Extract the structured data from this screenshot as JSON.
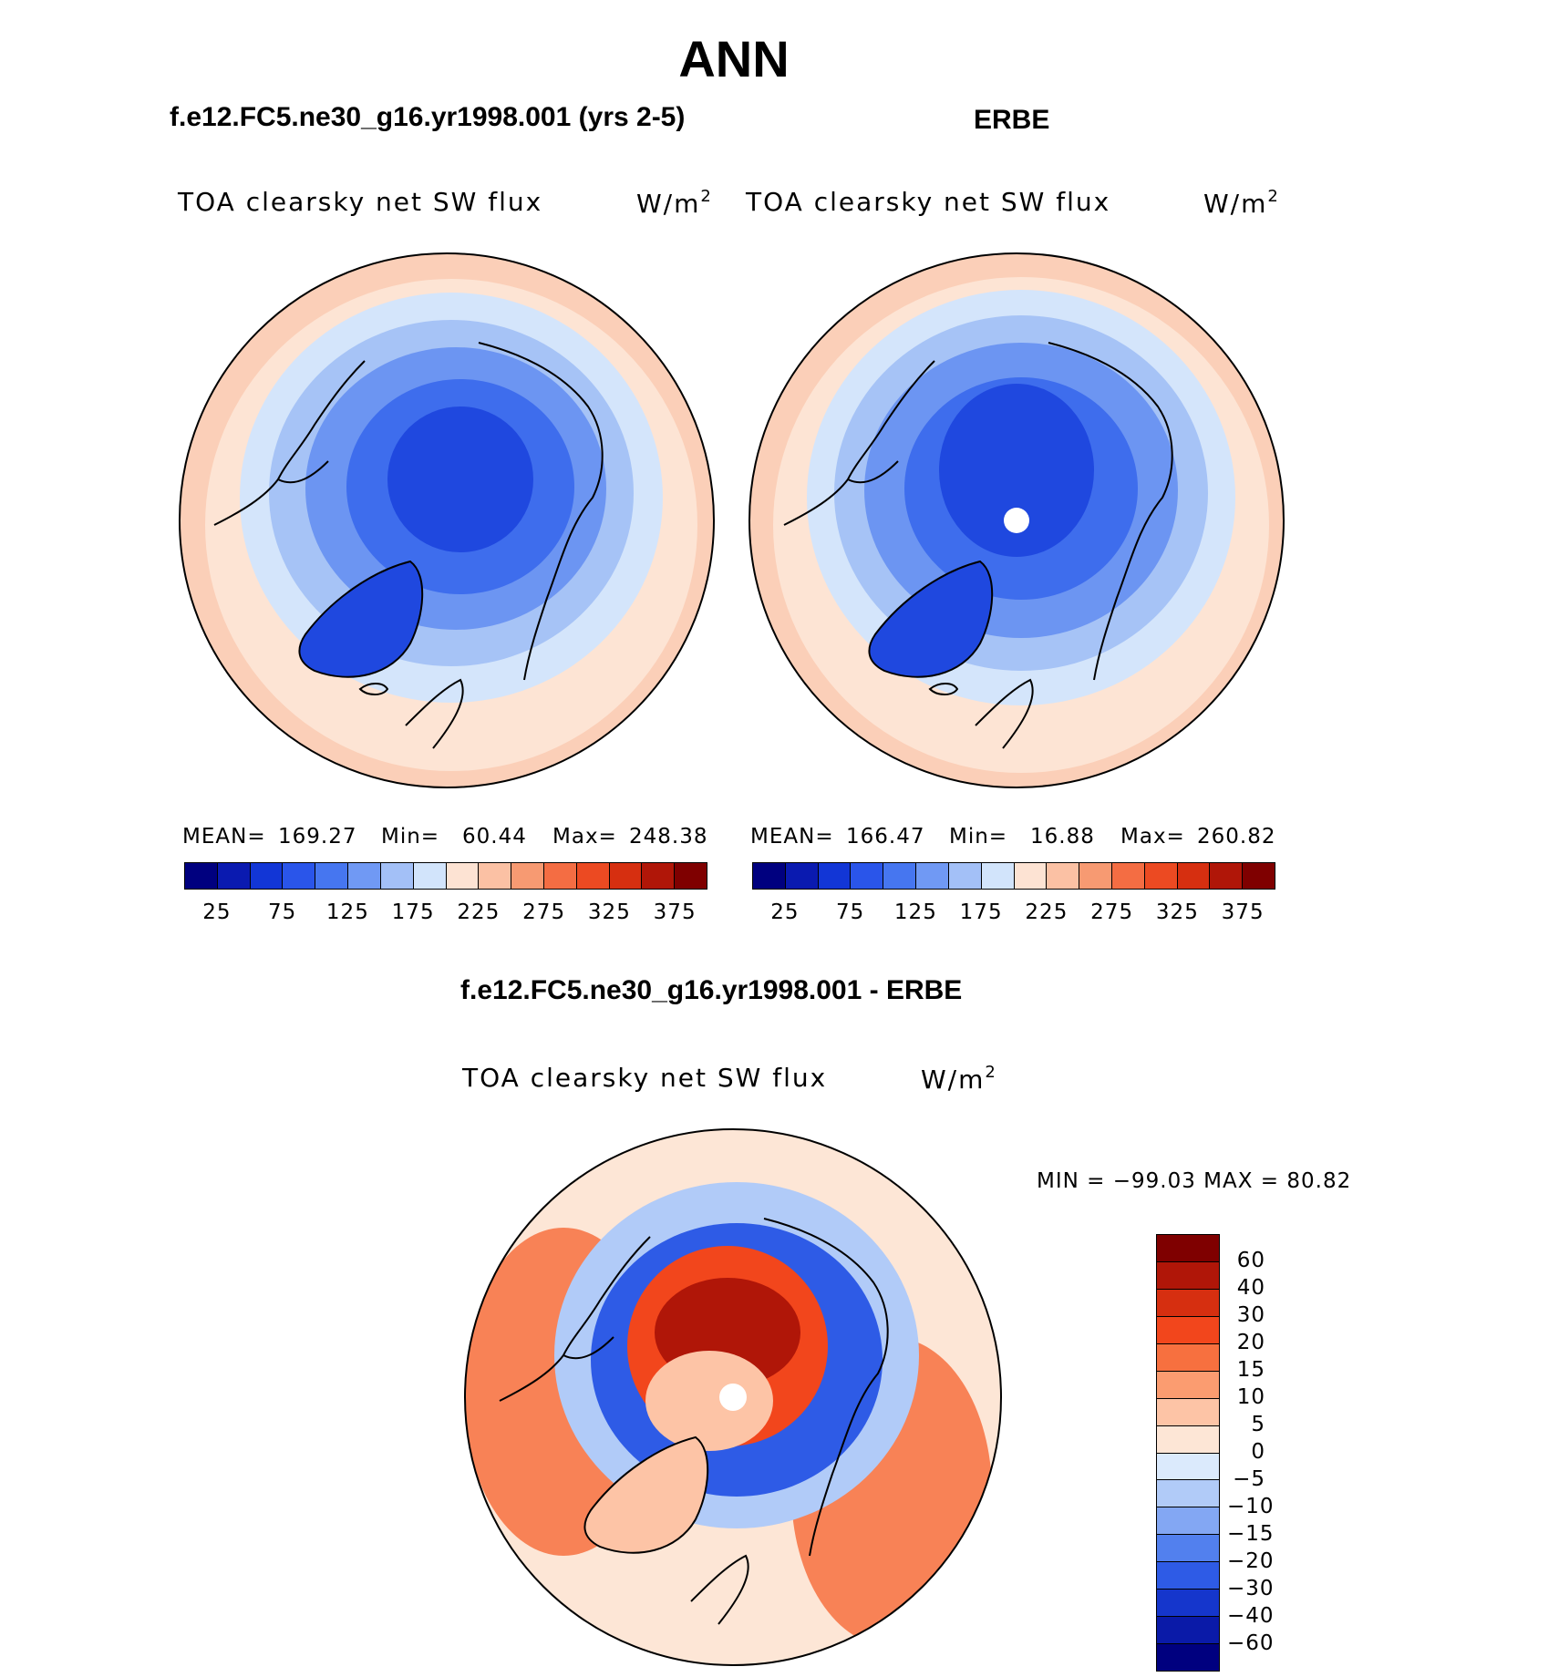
{
  "figure_title": "ANN",
  "panels": {
    "model": {
      "case_title": "f.e12.FC5.ne30_g16.yr1998.001 (yrs 2-5)",
      "variable": "TOA clearsky net SW flux",
      "units_base": "W/m",
      "units_exp": "2",
      "mean_label": "MEAN=",
      "mean_value": "169.27",
      "min_label": "Min=",
      "min_value": "60.44",
      "max_label": "Max=",
      "max_value": "248.38"
    },
    "obs": {
      "case_title": "ERBE",
      "variable": "TOA clearsky net SW flux",
      "units_base": "W/m",
      "units_exp": "2",
      "mean_label": "MEAN=",
      "mean_value": "166.47",
      "min_label": "Min=",
      "min_value": "16.88",
      "max_label": "Max=",
      "max_value": "260.82"
    },
    "diff": {
      "case_title": "f.e12.FC5.ne30_g16.yr1998.001 - ERBE",
      "variable": "TOA clearsky net SW flux",
      "units_base": "W/m",
      "units_exp": "2",
      "minmax_text": "MIN = −99.03 MAX =  80.82"
    }
  },
  "colorbars": {
    "absolute": {
      "tick_labels": [
        "25",
        "75",
        "125",
        "175",
        "225",
        "275",
        "325",
        "375"
      ],
      "colors": [
        "#00007f",
        "#0a1ab0",
        "#1236d6",
        "#2a55ea",
        "#4676f0",
        "#7099f4",
        "#a3c0f7",
        "#d2e4fb",
        "#fde3d3",
        "#fbc1a4",
        "#f79a72",
        "#f46d43",
        "#ec4a22",
        "#d62f10",
        "#b01608",
        "#7f0000"
      ]
    },
    "difference": {
      "tick_labels": [
        "60",
        "40",
        "30",
        "20",
        "15",
        "10",
        "5",
        "0",
        "−5",
        "−10",
        "−15",
        "−20",
        "−30",
        "−40",
        "−60"
      ],
      "colors": [
        "#7f0000",
        "#b01608",
        "#d62f10",
        "#f2461c",
        "#f7703f",
        "#fb9c70",
        "#fdc4a6",
        "#fde6d6",
        "#dbeafc",
        "#b1cbf8",
        "#83a7f3",
        "#5280ee",
        "#2e5be6",
        "#1536cc",
        "#0a1aa8",
        "#00007f"
      ]
    }
  },
  "map_colors": {
    "polar_deep": "#1f48df",
    "polar_mid": "#3e6ded",
    "polar_light": "#6c95f2",
    "polar_pale": "#a6c3f6",
    "subarctic": "#d4e5fb",
    "midlat": "#fde4d4",
    "outer": "#fbcfb8",
    "greenland": "#1f48df",
    "coast": "#000000"
  }
}
